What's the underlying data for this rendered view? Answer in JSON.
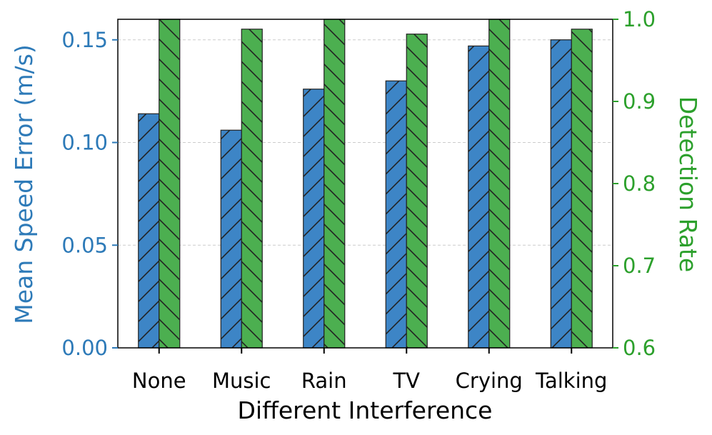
{
  "chart_data": {
    "type": "bar",
    "xlabel": "Different Interference",
    "categories": [
      "None",
      "Music",
      "Rain",
      "TV",
      "Crying",
      "Talking"
    ],
    "series": [
      {
        "name": "",
        "axis": "left",
        "color": "#3d85c6",
        "hatch": "slash",
        "values": [
          0.114,
          0.106,
          0.126,
          0.13,
          0.147,
          0.15
        ]
      },
      {
        "name": "",
        "axis": "right",
        "color": "#4caf50",
        "hatch": "backslash",
        "values": [
          1.0,
          0.988,
          1.0,
          0.982,
          1.0,
          0.988
        ]
      }
    ],
    "y_left": {
      "label": "Mean Speed Error (m/s)",
      "color": "#2d7ab8",
      "range": [
        0.0,
        0.16
      ],
      "ticks": [
        "0.00",
        "0.05",
        "0.10",
        "0.15"
      ]
    },
    "y_right": {
      "label": "Detection Rate",
      "color": "#2ca02c",
      "range": [
        0.6,
        1.0
      ],
      "ticks": [
        "0.6",
        "0.7",
        "0.8",
        "0.9",
        "1.0"
      ]
    },
    "grid": "horizontal-dashed",
    "legend": "none"
  }
}
